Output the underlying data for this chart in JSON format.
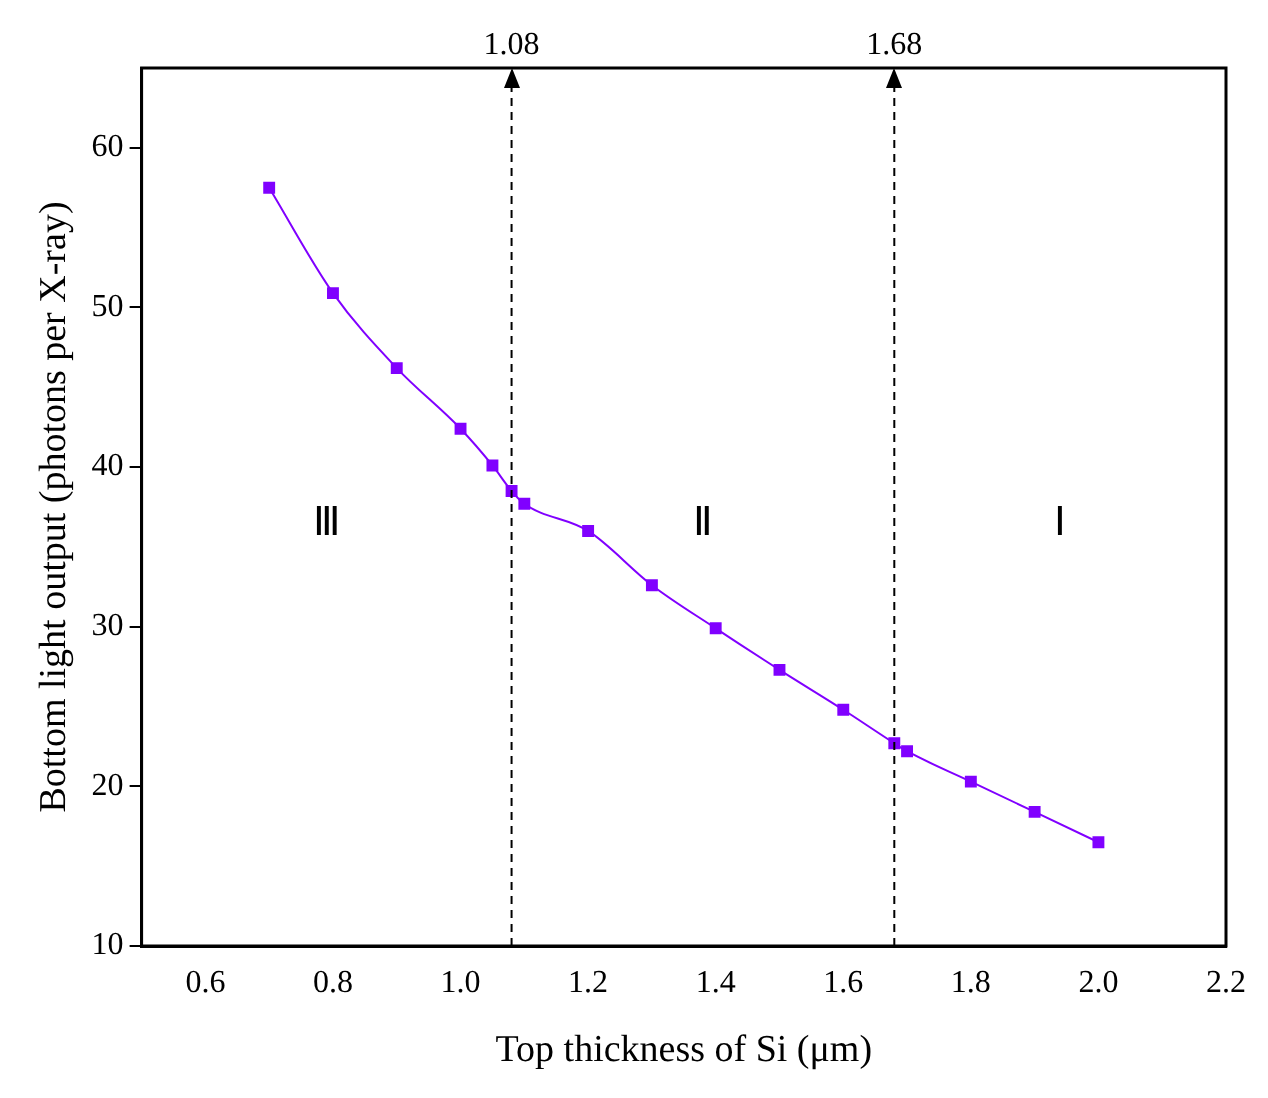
{
  "chart_data": {
    "type": "line",
    "xlabel": "Top thickness of Si (μm)",
    "ylabel": "Bottom light output (photons per X-ray)",
    "x": [
      0.7,
      0.8,
      0.9,
      1.0,
      1.05,
      1.08,
      1.1,
      1.2,
      1.3,
      1.4,
      1.5,
      1.6,
      1.68,
      1.7,
      1.8,
      1.9,
      2.0
    ],
    "series": [
      {
        "color": "#8000ff",
        "values": [
          57.5,
          50.9,
          46.2,
          42.4,
          40.1,
          38.5,
          37.7,
          36.0,
          32.6,
          29.9,
          27.3,
          24.8,
          22.7,
          22.2,
          20.3,
          18.4,
          16.5
        ]
      }
    ],
    "xlim": [
      0.5,
      2.2
    ],
    "xticks": [
      "0.6",
      "0.8",
      "1.0",
      "1.2",
      "1.4",
      "1.6",
      "1.8",
      "2.0",
      "2.2"
    ],
    "ylim": [
      10,
      65
    ],
    "yticks": [
      10,
      20,
      30,
      40,
      50,
      60
    ],
    "ref_lines": [
      {
        "axis": "x",
        "value": 1.08,
        "label": "1.08",
        "line_style": "dashed"
      },
      {
        "axis": "x",
        "value": 1.68,
        "label": "1.68",
        "line_style": "dashed"
      }
    ],
    "annotations": [
      "Ⅲ",
      "Ⅱ",
      "Ⅰ"
    ],
    "marker": "square",
    "line_style": "solid",
    "grid": false,
    "legend": false
  }
}
